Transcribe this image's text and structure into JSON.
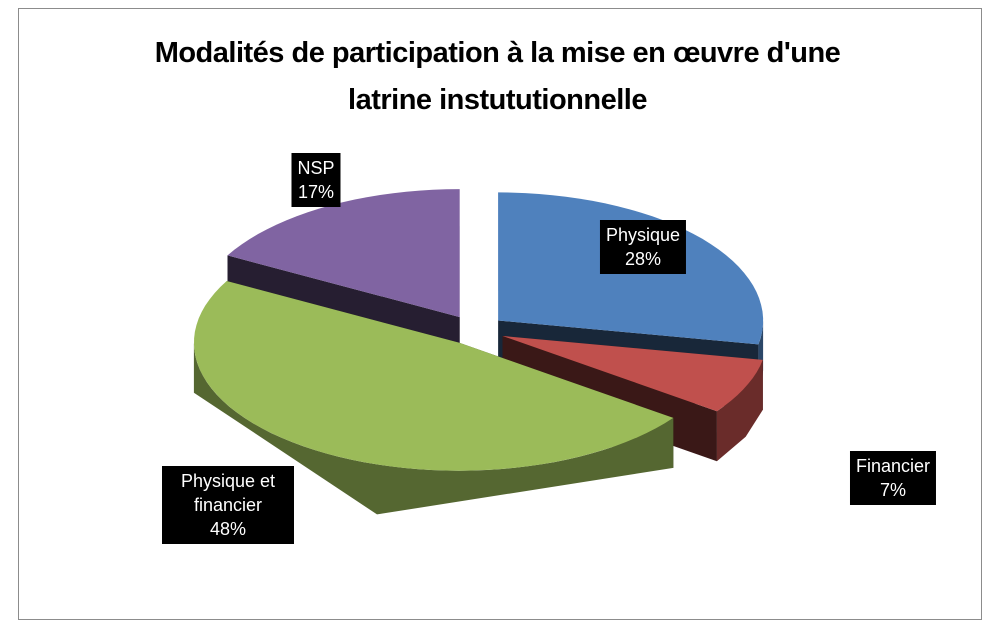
{
  "chart_data": {
    "type": "pie",
    "title": "Modalités de participation à la mise en œuvre d'une latrine instututionnelle",
    "categories": [
      "Physique",
      "Financier",
      "Physique et financier",
      "NSP"
    ],
    "values": [
      28,
      7,
      48,
      17
    ],
    "value_labels": [
      "28%",
      "7%",
      "48%",
      "17%"
    ],
    "colors": [
      "#4f81bd",
      "#c0504d",
      "#9bbb59",
      "#8064a2"
    ]
  }
}
